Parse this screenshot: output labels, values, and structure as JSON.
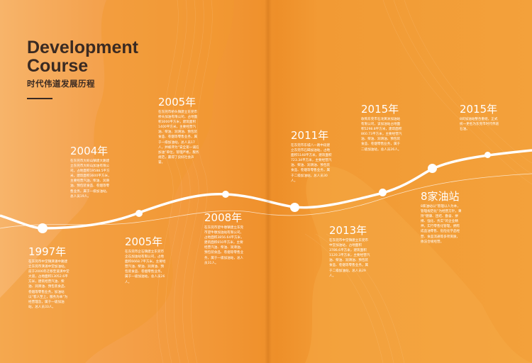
{
  "header": {
    "title_line1": "Development",
    "title_line2": "Course",
    "subtitle": "时代伟道发展历程"
  },
  "milestones": [
    {
      "year": "1997年",
      "text": "在东莞市中堂镇潢涌中路建立东莞市潢涌中堂加油站，前于2006年迁移至道潢中堂大道，占地面积13052.6平方米，建筑经营汽油、柴油、润滑油、预包装食品、卷烟等零售业务，加油站以“客人至上，服务为本”为经营理念，属于一级加油站，总人员33人。"
    },
    {
      "year": "2004年",
      "text": "在东莞市大岭山镇建大路建立东莞市大岭山加油有限公司，占地面积19588.5平方米，建筑面积3600平方米，主要经营汽油、柴油、润滑油、预包装食品、卷烟等零售业务，属于一级加油站，总人员19人。"
    },
    {
      "year": "2005年",
      "text": "在东莞市企石镇建立东莞市企石加油站有限公司，占地面积6668.7平方米，主要经营汽油、柴油、润滑油、预包装食品、卷烟零售业务，属于一级加油站，总人员26人。"
    },
    {
      "year": "2005年",
      "text": "在东莞市桥头镇建立东莞市桥头加油有限公司，占地面积3000平方米，建筑面积1400平方米，主要经营汽油、柴油、润滑油、预包装食品、卷烟等零售业务，属于一级加油站，总人员17人，并被评为“安全第一诚信加油”单位，管理严格，服务规范，赢得了良好社会声誉。"
    },
    {
      "year": "2008年",
      "text": "在东莞市望牛墩镇建立东莞市望牛墩加油站有限公司，占地面积3856.64平方米，建筑面积650平方米，主要经营汽油、柴油、润滑油、预包装食品、卷烟等零售业务，属于一级加油站，总人员31人。"
    },
    {
      "year": "2011年",
      "text": "在东莞市东城八一路中段建立东莞市石碣加油站，占地面积5148平方米，建筑面积723.34平方米，主要经营汽油、柴油、润滑油、预包装食品、卷烟等零售业务，属于二级加油站，总人员30人。"
    },
    {
      "year": "2013年",
      "text": "在东莞市中堂镇建立东莞市中堂加油站，占地面积3786.6平方米，建筑面积1120.3平方米，主要经营汽油、柴油、润滑油、预包装食品、卷烟等零售业务，属于二级加油站，总人员29人。"
    },
    {
      "year": "2015年",
      "text": "收购东莞市石龙黄洲加油站有限公司，该加油站占地面积5298.8平方米，建筑面积860.73平方米，主要经营汽油、柴油、润滑油、预包装食品、卷烟零售业务，属于二级加油站，总人员26人。"
    },
    {
      "year": "2015年",
      "text": "8间加油站整合重组，正式统一更名为东莞市时代伟道石油。"
    },
    {
      "year": "8家油站",
      "text": "8家油站以“管理以人为本，管理规范化”为经营方针，秉持“健康、团结、勤奋、拼搏、强化、务实”的企业精神，实行零售化管理，拥有成品油零售、危险化学品经营、食品流通等多项资质，依法合规经营。"
    }
  ],
  "colors": {
    "accent_text": "#3a2a22",
    "timeline": "#ffffff"
  }
}
